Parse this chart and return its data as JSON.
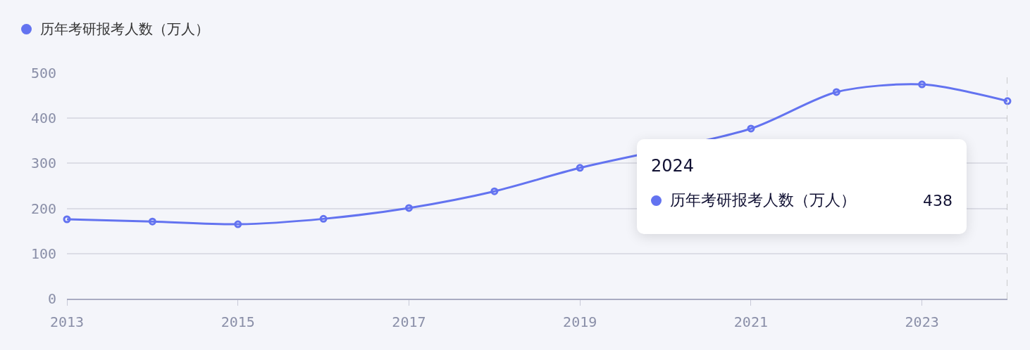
{
  "chart_data": {
    "type": "line",
    "x": [
      2013,
      2014,
      2015,
      2016,
      2017,
      2018,
      2019,
      2020,
      2021,
      2022,
      2023,
      2024
    ],
    "series": [
      {
        "name": "历年考研报考人数（万人）",
        "color": "#6373f0",
        "values": [
          176,
          171,
          165,
          177,
          201,
          238,
          290,
          null,
          377,
          458,
          475,
          438
        ]
      }
    ],
    "xlim": [
      2013,
      2024
    ],
    "xticks": [
      2013,
      2015,
      2017,
      2019,
      2021,
      2023
    ],
    "ylim": [
      0,
      500
    ],
    "yticks": [
      0,
      100,
      200,
      300,
      400,
      500
    ],
    "grid": "y",
    "legend": "top left",
    "marker": "circle",
    "line_style": "solid",
    "ref_lines": [
      {
        "axis": "x",
        "value": 2024,
        "color": "#bbbbbb",
        "line_style": "dashed"
      }
    ],
    "annotations": [
      "2024",
      "历年考研报考人数（万人）",
      "438"
    ]
  }
}
